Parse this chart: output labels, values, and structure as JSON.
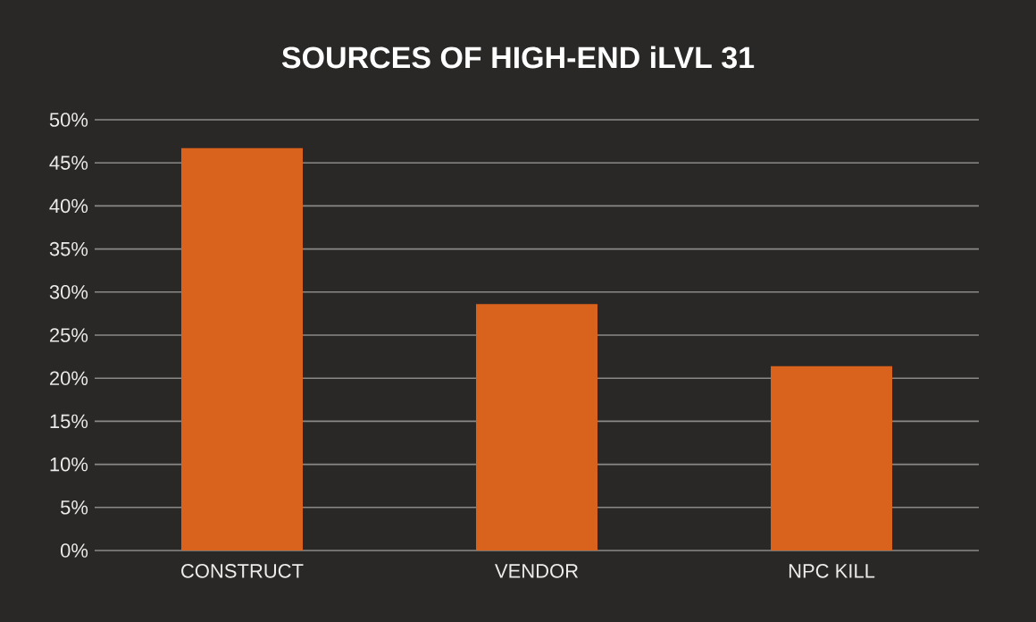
{
  "chart_data": {
    "type": "bar",
    "title": "SOURCES OF HIGH-END iLVL 31",
    "categories": [
      "CONSTRUCT",
      "VENDOR",
      "NPC KILL"
    ],
    "values": [
      46.7,
      28.6,
      21.4
    ],
    "color": "#d9621c",
    "ylim": [
      0,
      50
    ],
    "yticks": [
      {
        "value": 0,
        "label": "0%"
      },
      {
        "value": 5,
        "label": "5%"
      },
      {
        "value": 10,
        "label": "10%"
      },
      {
        "value": 15,
        "label": "15%"
      },
      {
        "value": 20,
        "label": "20%"
      },
      {
        "value": 25,
        "label": "25%"
      },
      {
        "value": 30,
        "label": "30%"
      },
      {
        "value": 35,
        "label": "35%"
      },
      {
        "value": 40,
        "label": "40%"
      },
      {
        "value": 45,
        "label": "45%"
      },
      {
        "value": 50,
        "label": "50%"
      }
    ],
    "grid": "y"
  }
}
